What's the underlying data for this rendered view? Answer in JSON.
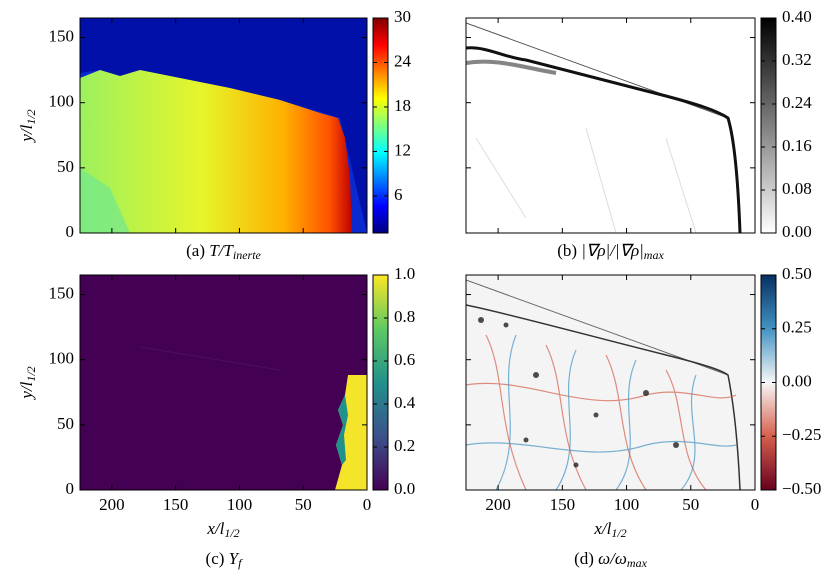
{
  "chart_data": [
    {
      "type": "heatmap",
      "caption": {
        "prefix": "(a)",
        "base": "T/T",
        "sub": "inerte"
      },
      "ylabel": {
        "base": "y/l",
        "sub": "1/2"
      },
      "xlim": [
        225,
        0
      ],
      "xticks": [
        200,
        150,
        100,
        50,
        0
      ],
      "ylim": [
        0,
        165
      ],
      "yticks": [
        0,
        50,
        100,
        150
      ],
      "clim": [
        1,
        30
      ],
      "cticks": [
        6,
        12,
        18,
        24,
        30
      ],
      "colormap": [
        "#00007f",
        "#0000ff",
        "#007fff",
        "#00ffff",
        "#7fff7f",
        "#ffff00",
        "#ff7f00",
        "#ff0000",
        "#7f0000"
      ]
    },
    {
      "type": "heatmap",
      "caption": {
        "prefix": "(b)",
        "base": "|∇ρ|/|∇ρ|",
        "sub": "max"
      },
      "xlim": [
        225,
        0
      ],
      "xticks": [
        200,
        150,
        100,
        50,
        0
      ],
      "ylim": [
        0,
        165
      ],
      "yticks": [
        0,
        50,
        100,
        150
      ],
      "clim": [
        0,
        0.4
      ],
      "cticks": [
        {
          "value": 0,
          "label": "0.00"
        },
        {
          "value": 0.08,
          "label": "0.08"
        },
        {
          "value": 0.16,
          "label": "0.16"
        },
        {
          "value": 0.24,
          "label": "0.24"
        },
        {
          "value": 0.32,
          "label": "0.32"
        },
        {
          "value": 0.4,
          "label": "0.40"
        }
      ],
      "colormap": [
        "#ffffff",
        "#000000"
      ]
    },
    {
      "type": "heatmap",
      "caption": {
        "prefix": "(c)",
        "base": "Y",
        "sub": "f"
      },
      "xlabel": {
        "base": "x/l",
        "sub": "1/2"
      },
      "ylabel": {
        "base": "y/l",
        "sub": "1/2"
      },
      "xlim": [
        225,
        0
      ],
      "xticks": [
        200,
        150,
        100,
        50,
        0
      ],
      "ylim": [
        0,
        165
      ],
      "yticks": [
        0,
        50,
        100,
        150
      ],
      "clim": [
        0,
        1
      ],
      "cticks": [
        {
          "value": 0,
          "label": "0.0"
        },
        {
          "value": 0.2,
          "label": "0.2"
        },
        {
          "value": 0.4,
          "label": "0.4"
        },
        {
          "value": 0.6,
          "label": "0.6"
        },
        {
          "value": 0.8,
          "label": "0.8"
        },
        {
          "value": 1,
          "label": "1.0"
        }
      ],
      "colormap": [
        "#440154",
        "#3b528b",
        "#21918c",
        "#5ec962",
        "#fde725"
      ]
    },
    {
      "type": "heatmap",
      "caption": {
        "prefix": "(d)",
        "base": "ω/ω",
        "sub": "max"
      },
      "xlabel": {
        "base": "x/l",
        "sub": "1/2"
      },
      "xlim": [
        225,
        0
      ],
      "xticks": [
        200,
        150,
        100,
        50,
        0
      ],
      "ylim": [
        0,
        165
      ],
      "yticks": [
        0,
        50,
        100,
        150
      ],
      "clim": [
        -0.5,
        0.5
      ],
      "cticks": [
        {
          "value": -0.5,
          "label": "−0.50"
        },
        {
          "value": -0.25,
          "label": "−0.25"
        },
        {
          "value": 0,
          "label": "0.00"
        },
        {
          "value": 0.25,
          "label": "0.25"
        },
        {
          "value": 0.5,
          "label": "0.50"
        }
      ],
      "colormap": [
        "#67001f",
        "#d6604d",
        "#f7f7f7",
        "#4393c3",
        "#053061"
      ]
    }
  ]
}
